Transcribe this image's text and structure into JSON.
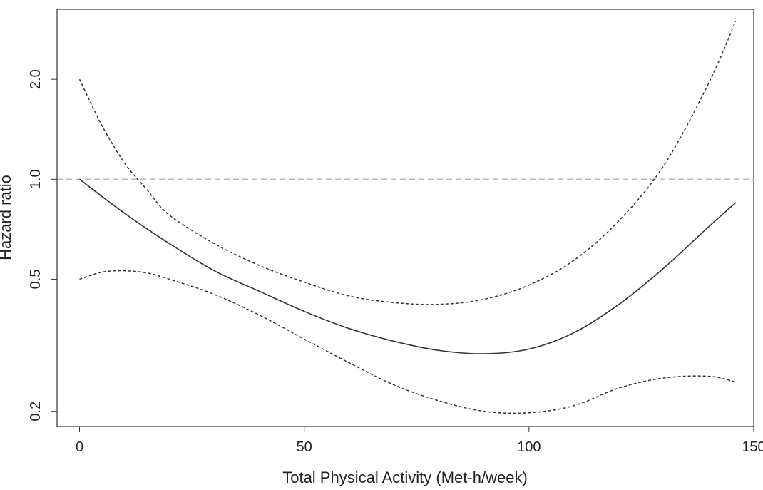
{
  "chart_data": {
    "type": "line",
    "title": "",
    "xlabel": "Total Physical Activity (Met-h/week)",
    "ylabel": "Hazard ratio",
    "xlim": [
      -5,
      150
    ],
    "ylim": [
      0.18,
      3.25
    ],
    "y_scale": "log",
    "x_ticks": [
      0,
      50,
      100,
      150
    ],
    "x_tick_labels": [
      "0",
      "50",
      "100",
      "150"
    ],
    "y_ticks": [
      0.2,
      0.5,
      1.0,
      2.0
    ],
    "y_tick_labels": [
      "0.2",
      "0.5",
      "1.0",
      "2.0"
    ],
    "grid": false,
    "reference_line": {
      "y": 1.0,
      "style": "dashed",
      "color": "#bbbbbb"
    },
    "series": [
      {
        "style": "solid",
        "x": [
          0,
          10,
          20,
          30,
          40,
          50,
          60,
          70,
          80,
          90,
          100,
          110,
          120,
          130,
          140,
          146
        ],
        "y": [
          1.0,
          0.79,
          0.64,
          0.53,
          0.46,
          0.4,
          0.355,
          0.325,
          0.305,
          0.298,
          0.308,
          0.345,
          0.42,
          0.54,
          0.72,
          0.85
        ]
      },
      {
        "style": "dashed",
        "x": [
          0,
          5,
          10,
          15,
          20,
          30,
          40,
          50,
          60,
          70,
          80,
          90,
          100,
          110,
          120,
          130,
          140,
          146
        ],
        "y": [
          2.0,
          1.45,
          1.12,
          0.93,
          0.78,
          0.64,
          0.55,
          0.49,
          0.445,
          0.425,
          0.42,
          0.435,
          0.48,
          0.57,
          0.75,
          1.1,
          1.95,
          3.0
        ]
      },
      {
        "style": "dashed",
        "x": [
          0,
          5,
          10,
          15,
          20,
          30,
          40,
          50,
          60,
          70,
          80,
          90,
          100,
          110,
          120,
          130,
          140,
          146
        ],
        "y": [
          0.5,
          0.525,
          0.53,
          0.522,
          0.5,
          0.45,
          0.39,
          0.33,
          0.28,
          0.24,
          0.215,
          0.2,
          0.198,
          0.208,
          0.235,
          0.252,
          0.255,
          0.245
        ]
      }
    ]
  }
}
